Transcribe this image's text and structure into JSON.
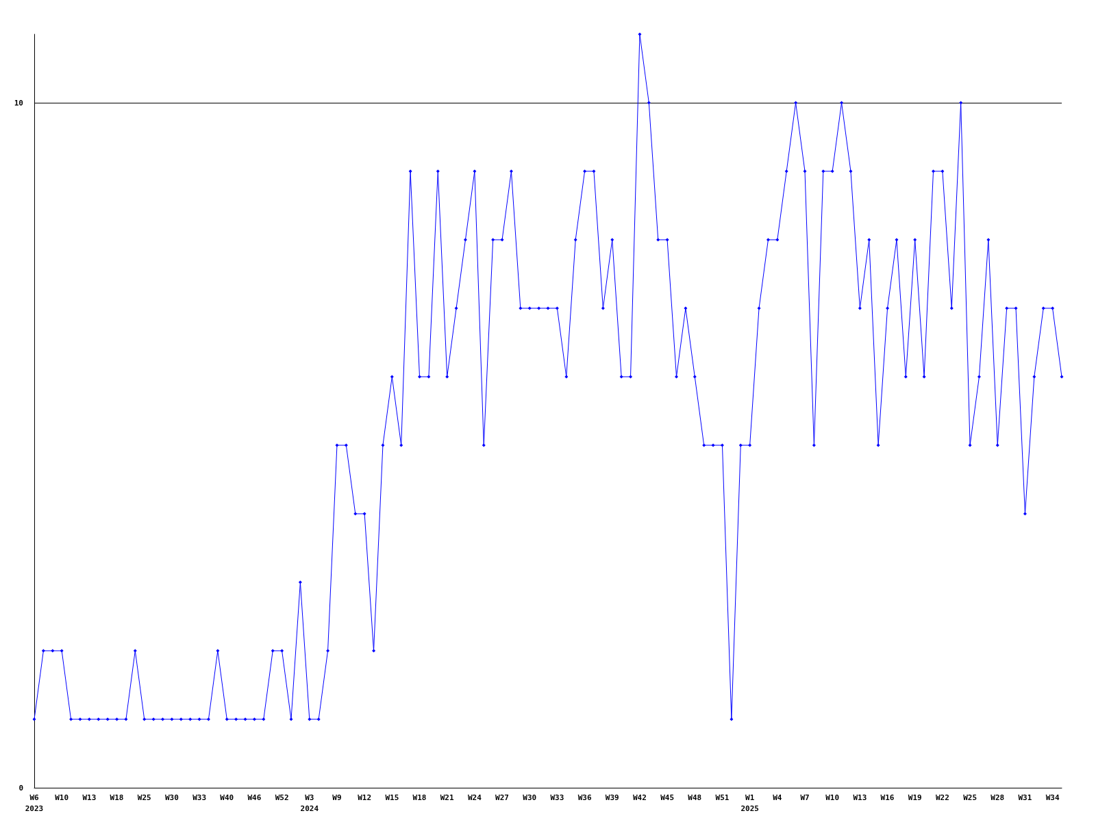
{
  "chart_data": {
    "type": "line",
    "categories": [
      "W6\n2023",
      null,
      null,
      "W10",
      null,
      null,
      "W13",
      null,
      null,
      "W18",
      null,
      null,
      "W25",
      null,
      null,
      "W30",
      null,
      null,
      "W33",
      null,
      null,
      "W40",
      null,
      null,
      "W46",
      null,
      null,
      "W52",
      null,
      null,
      "W3\n2024",
      null,
      null,
      "W9",
      null,
      null,
      "W12",
      null,
      null,
      "W15",
      null,
      null,
      "W18",
      null,
      null,
      "W21",
      null,
      null,
      "W24",
      null,
      null,
      "W27",
      null,
      null,
      "W30",
      null,
      null,
      "W33",
      null,
      null,
      "W36",
      null,
      null,
      "W39",
      null,
      null,
      "W42",
      null,
      null,
      "W45",
      null,
      null,
      "W48",
      null,
      null,
      "W51",
      null,
      null,
      "W1\n2025",
      null,
      null,
      "W4",
      null,
      null,
      "W7",
      null,
      null,
      "W10",
      null,
      null,
      "W13",
      null,
      null,
      "W16",
      null,
      null,
      "W19",
      null,
      null,
      "W22",
      null,
      null,
      "W25",
      null,
      null,
      "W28",
      null,
      null,
      "W31",
      null,
      null,
      "W34",
      null
    ],
    "series": [
      {
        "color": "#0000ff",
        "values": [
          1,
          2,
          2,
          2,
          1,
          1,
          1,
          1,
          1,
          1,
          1,
          2,
          1,
          1,
          1,
          1,
          1,
          1,
          1,
          1,
          2,
          1,
          1,
          1,
          1,
          1,
          2,
          2,
          1,
          3,
          1,
          1,
          2,
          5,
          5,
          4,
          4,
          2,
          5,
          6,
          5,
          9,
          6,
          6,
          9,
          6,
          7,
          8,
          9,
          5,
          8,
          8,
          9,
          7,
          7,
          7,
          7,
          7,
          6,
          8,
          9,
          9,
          7,
          8,
          6,
          6,
          11,
          10,
          8,
          8,
          6,
          7,
          6,
          5,
          5,
          5,
          1,
          5,
          5,
          7,
          8,
          8,
          9,
          10,
          9,
          5,
          9,
          9,
          10,
          9,
          7,
          8,
          5,
          7,
          8,
          6,
          8,
          6,
          9,
          9,
          7,
          10,
          5,
          6,
          8,
          5,
          7,
          7,
          4,
          6,
          7,
          7,
          6
        ]
      }
    ],
    "ylim": [
      0,
      11
    ],
    "yticks": [
      0,
      10
    ],
    "grid": "y",
    "marker": "diamond",
    "line_style": "solid"
  }
}
